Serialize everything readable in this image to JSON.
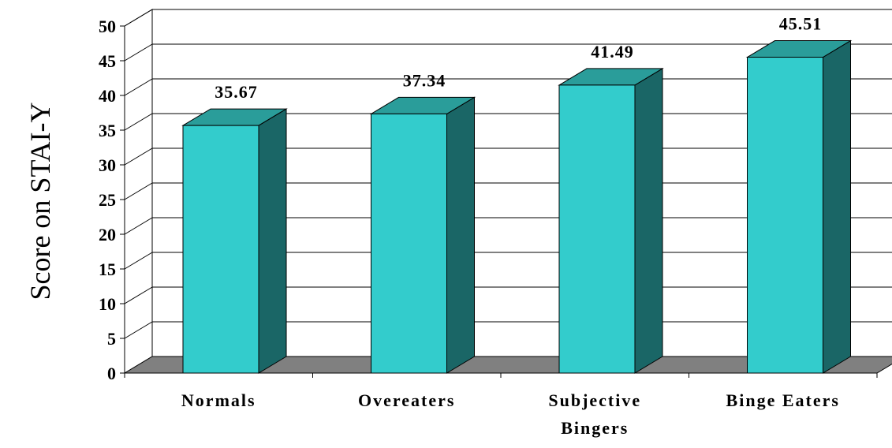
{
  "chart_data": {
    "type": "bar",
    "title": "",
    "xlabel": "",
    "ylabel": "Score on STAI-Y",
    "categories": [
      [
        "Normals"
      ],
      [
        "Overeaters"
      ],
      [
        "Subjective",
        "Bingers"
      ],
      [
        "Binge Eaters"
      ]
    ],
    "values": [
      35.67,
      37.34,
      41.49,
      45.51
    ],
    "data_labels": [
      "35.67",
      "37.34",
      "41.49",
      "45.51"
    ],
    "ylim": [
      0,
      50
    ],
    "yticks": [
      "0",
      "5",
      "10",
      "15",
      "20",
      "25",
      "30",
      "35",
      "40",
      "45",
      "50"
    ],
    "grid": true,
    "legend": "none",
    "style": "3d-column",
    "colors": {
      "bar_front": "#33CCCC",
      "bar_top": "#2A9D9A",
      "bar_side": "#1A6666",
      "floor": "#808080",
      "grid": "#000000"
    }
  }
}
